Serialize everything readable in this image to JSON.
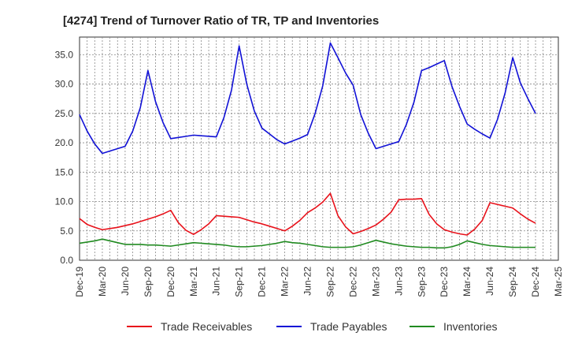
{
  "chart_data": {
    "type": "line",
    "title": "[4274]  Trend of Turnover Ratio of TR, TP and Inventories",
    "xlabel": "",
    "ylabel": "",
    "ylim": [
      0,
      38
    ],
    "yticks": [
      "0.0",
      "5.0",
      "10.0",
      "15.0",
      "20.0",
      "25.0",
      "30.0",
      "35.0"
    ],
    "ytick_values": [
      0,
      5,
      10,
      15,
      20,
      25,
      30,
      35
    ],
    "xticks": [
      "Dec-19",
      "Mar-20",
      "Jun-20",
      "Sep-20",
      "Dec-20",
      "Mar-21",
      "Jun-21",
      "Sep-21",
      "Dec-21",
      "Mar-22",
      "Jun-22",
      "Sep-22",
      "Dec-22",
      "Mar-23",
      "Jun-23",
      "Sep-23",
      "Dec-23",
      "Mar-24",
      "Jun-24",
      "Sep-24",
      "Dec-24",
      "Mar-25"
    ],
    "grid": true,
    "legend_position": "bottom",
    "x": [
      "Dec-19",
      "Jan-20",
      "Feb-20",
      "Mar-20",
      "Apr-20",
      "May-20",
      "Jun-20",
      "Jul-20",
      "Aug-20",
      "Sep-20",
      "Oct-20",
      "Nov-20",
      "Dec-20",
      "Jan-21",
      "Feb-21",
      "Mar-21",
      "Apr-21",
      "May-21",
      "Jun-21",
      "Jul-21",
      "Aug-21",
      "Sep-21",
      "Oct-21",
      "Nov-21",
      "Dec-21",
      "Jan-22",
      "Feb-22",
      "Mar-22",
      "Apr-22",
      "May-22",
      "Jun-22",
      "Jul-22",
      "Aug-22",
      "Sep-22",
      "Oct-22",
      "Nov-22",
      "Dec-22",
      "Jan-23",
      "Feb-23",
      "Mar-23",
      "Apr-23",
      "May-23",
      "Jun-23",
      "Jul-23",
      "Aug-23",
      "Sep-23",
      "Oct-23",
      "Nov-23",
      "Dec-23",
      "Jan-24",
      "Feb-24",
      "Mar-24",
      "Apr-24",
      "May-24",
      "Jun-24",
      "Jul-24",
      "Aug-24",
      "Sep-24",
      "Oct-24",
      "Nov-24",
      "Dec-24"
    ],
    "series": [
      {
        "name": "Trade Receivables",
        "color": "#e8111a",
        "values": [
          7.1,
          6.1,
          5.6,
          5.2,
          5.4,
          5.6,
          5.9,
          6.2,
          6.6,
          7.0,
          7.4,
          7.9,
          8.5,
          6.4,
          5.1,
          4.4,
          5.2,
          6.2,
          7.6,
          7.5,
          7.4,
          7.3,
          6.9,
          6.5,
          6.2,
          5.8,
          5.4,
          5.0,
          5.8,
          6.8,
          8.1,
          8.9,
          9.9,
          11.4,
          7.6,
          5.7,
          4.5,
          4.9,
          5.4,
          6.0,
          7.0,
          8.2,
          10.3,
          10.4,
          10.4,
          10.5,
          7.8,
          6.2,
          5.2,
          4.8,
          4.5,
          4.3,
          5.3,
          6.8,
          9.8,
          9.5,
          9.2,
          8.9,
          7.9,
          7.0,
          6.3
        ]
      },
      {
        "name": "Trade Payables",
        "color": "#1111d6",
        "values": [
          24.8,
          22.0,
          19.8,
          18.2,
          18.6,
          19.0,
          19.4,
          22.0,
          26.0,
          32.3,
          27.0,
          23.4,
          20.7,
          20.9,
          21.1,
          21.3,
          21.2,
          21.1,
          21.0,
          24.3,
          29.0,
          36.5,
          30.0,
          25.4,
          22.5,
          21.5,
          20.5,
          19.8,
          20.3,
          20.8,
          21.4,
          25.0,
          29.7,
          37.0,
          34.5,
          31.9,
          29.8,
          24.8,
          21.6,
          19.0,
          19.4,
          19.8,
          20.2,
          23.1,
          26.9,
          32.3,
          32.8,
          33.4,
          34.0,
          29.6,
          26.2,
          23.2,
          22.3,
          21.5,
          20.8,
          24.0,
          28.5,
          34.5,
          30.2,
          27.5,
          25.0
        ]
      },
      {
        "name": "Inventories",
        "color": "#208a20",
        "values": [
          2.9,
          3.1,
          3.3,
          3.6,
          3.3,
          3.0,
          2.7,
          2.7,
          2.7,
          2.6,
          2.6,
          2.5,
          2.4,
          2.6,
          2.8,
          3.0,
          2.9,
          2.8,
          2.7,
          2.6,
          2.4,
          2.3,
          2.3,
          2.4,
          2.5,
          2.7,
          2.9,
          3.2,
          3.0,
          2.9,
          2.7,
          2.5,
          2.3,
          2.2,
          2.2,
          2.2,
          2.3,
          2.6,
          3.0,
          3.4,
          3.1,
          2.8,
          2.6,
          2.4,
          2.3,
          2.2,
          2.2,
          2.1,
          2.1,
          2.3,
          2.7,
          3.3,
          3.0,
          2.7,
          2.5,
          2.4,
          2.3,
          2.2,
          2.2,
          2.2,
          2.2
        ]
      }
    ]
  }
}
